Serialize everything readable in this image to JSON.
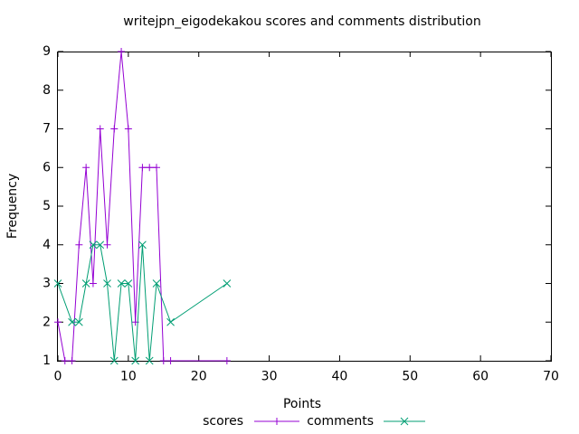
{
  "chart_data": {
    "type": "line",
    "title": "writejpn_eigodekakou scores and comments distribution",
    "xlabel": "Points",
    "ylabel": "Frequency",
    "xlim": [
      0,
      70
    ],
    "ylim": [
      1,
      9
    ],
    "x_ticks": [
      "0",
      "10",
      "20",
      "30",
      "40",
      "50",
      "60",
      "70"
    ],
    "y_ticks": [
      "1",
      "2",
      "3",
      "4",
      "5",
      "6",
      "7",
      "8",
      "9"
    ],
    "grid": false,
    "legend_position": "bottom-center",
    "series": [
      {
        "name": "scores",
        "color": "#9400d3",
        "marker": "plus",
        "x": [
          0,
          1,
          2,
          3,
          4,
          5,
          6,
          7,
          8,
          9,
          10,
          11,
          12,
          13,
          14,
          15,
          16,
          24
        ],
        "y": [
          2,
          1,
          1,
          4,
          6,
          3,
          7,
          4,
          7,
          9,
          7,
          2,
          6,
          6,
          6,
          1,
          1,
          1
        ]
      },
      {
        "name": "comments",
        "color": "#009e73",
        "marker": "cross",
        "x": [
          0,
          2,
          3,
          4,
          5,
          6,
          7,
          8,
          9,
          10,
          11,
          12,
          13,
          14,
          16,
          24
        ],
        "y": [
          3,
          2,
          2,
          3,
          4,
          4,
          3,
          1,
          3,
          3,
          1,
          4,
          1,
          3,
          2,
          3
        ]
      }
    ]
  }
}
